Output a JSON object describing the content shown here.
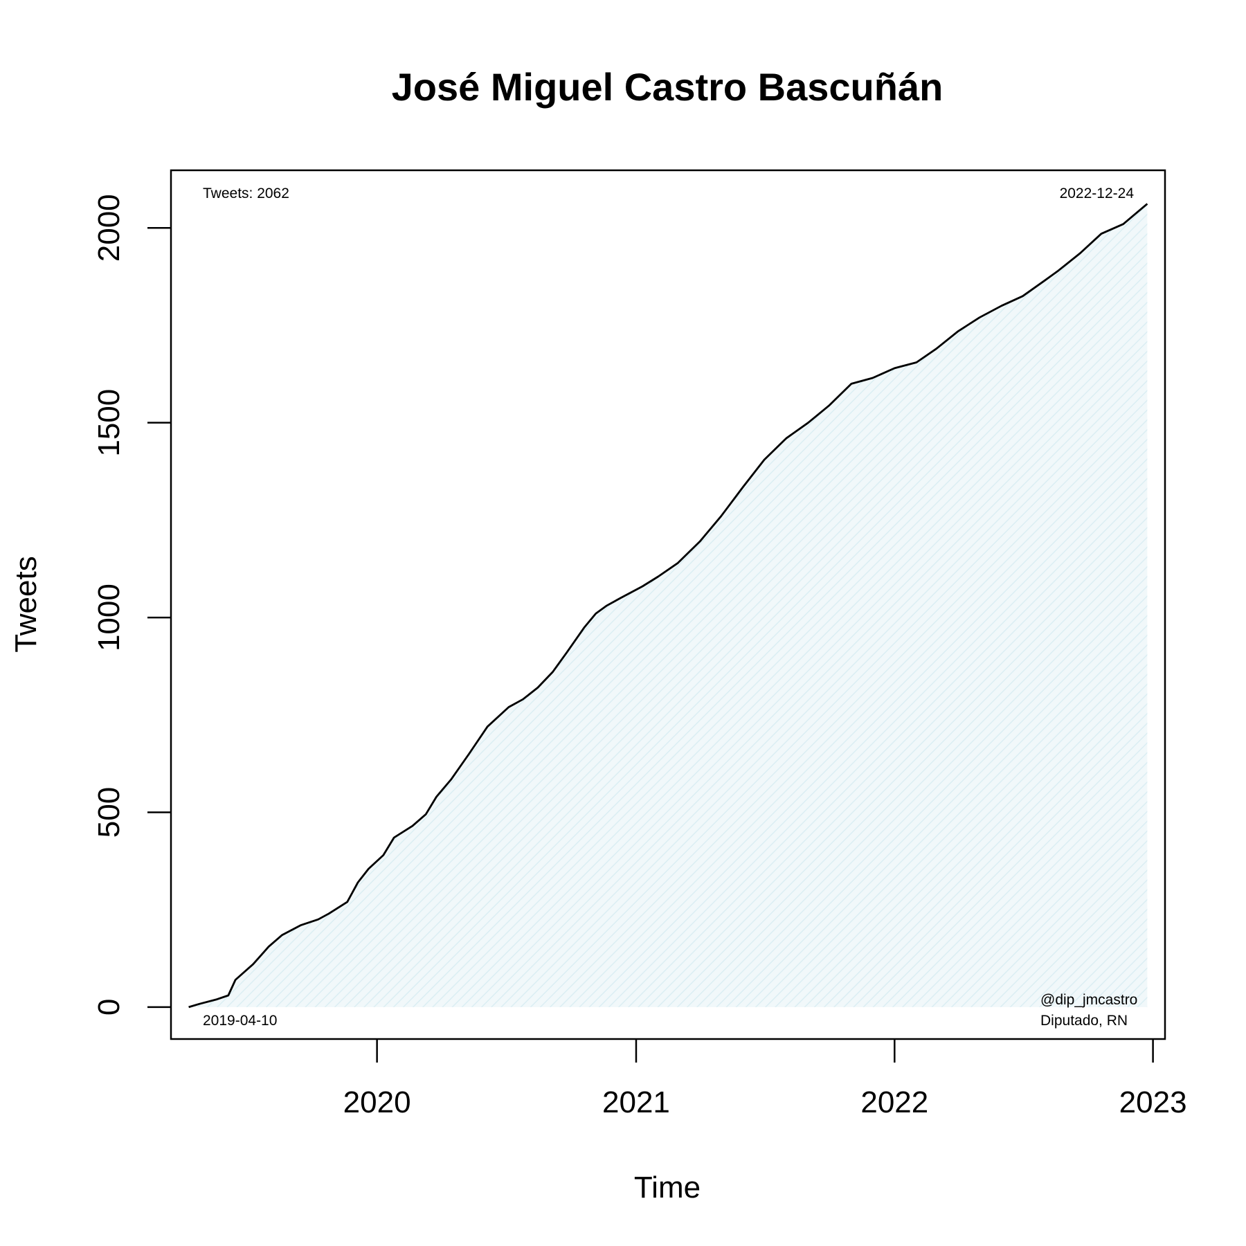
{
  "chart_data": {
    "type": "area",
    "title": "José Miguel Castro Bascuñán",
    "xlabel": "Time",
    "ylabel": "Tweets",
    "xlim": [
      "2019-03-16",
      "2023-01-18"
    ],
    "ylim": [
      -82,
      2148
    ],
    "x_ticks": [
      "2020-01-01",
      "2021-01-01",
      "2022-01-01",
      "2023-01-01"
    ],
    "x_tick_labels": [
      "2020",
      "2021",
      "2022",
      "2023"
    ],
    "y_ticks": [
      0,
      500,
      1000,
      1500,
      2000
    ],
    "y_tick_labels": [
      "0",
      "500",
      "1000",
      "1500",
      "2000"
    ],
    "grid": false,
    "line_color": "#000000",
    "fill_color": "#e6f2f5",
    "annotations": {
      "total": "Tweets: 2062",
      "end_date": "2022-12-24",
      "start_date": "2019-04-10",
      "handle": "@dip_jmcastro",
      "role": "Diputado, RN"
    },
    "series": [
      {
        "x": [
          "2019-04-10",
          "2019-04-25",
          "2019-05-20",
          "2019-06-05",
          "2019-06-15",
          "2019-07-10",
          "2019-08-01",
          "2019-08-20",
          "2019-09-15",
          "2019-10-10",
          "2019-10-25",
          "2019-11-20",
          "2019-12-05",
          "2019-12-20",
          "2020-01-10",
          "2020-01-25",
          "2020-02-20",
          "2020-03-10",
          "2020-03-25",
          "2020-04-15",
          "2020-05-10",
          "2020-06-05",
          "2020-07-05",
          "2020-07-25",
          "2020-08-15",
          "2020-09-05",
          "2020-09-25",
          "2020-10-20",
          "2020-11-05",
          "2020-11-20",
          "2020-12-10",
          "2021-01-10",
          "2021-02-01",
          "2021-03-01",
          "2021-04-01",
          "2021-05-01",
          "2021-06-01",
          "2021-07-01",
          "2021-08-01",
          "2021-09-01",
          "2021-10-01",
          "2021-11-01",
          "2021-12-01",
          "2022-01-01",
          "2022-02-01",
          "2022-03-01",
          "2022-04-01",
          "2022-05-01",
          "2022-06-01",
          "2022-07-01",
          "2022-08-01",
          "2022-08-20",
          "2022-09-20",
          "2022-10-20",
          "2022-11-20",
          "2022-12-24"
        ],
        "y": [
          0,
          8,
          20,
          30,
          70,
          110,
          155,
          185,
          210,
          225,
          240,
          270,
          320,
          355,
          390,
          435,
          465,
          495,
          540,
          585,
          650,
          720,
          770,
          790,
          820,
          860,
          910,
          975,
          1010,
          1030,
          1050,
          1080,
          1105,
          1140,
          1195,
          1260,
          1335,
          1405,
          1460,
          1500,
          1545,
          1600,
          1615,
          1640,
          1655,
          1690,
          1735,
          1770,
          1800,
          1825,
          1865,
          1890,
          1935,
          1985,
          2010,
          2062
        ]
      }
    ]
  }
}
